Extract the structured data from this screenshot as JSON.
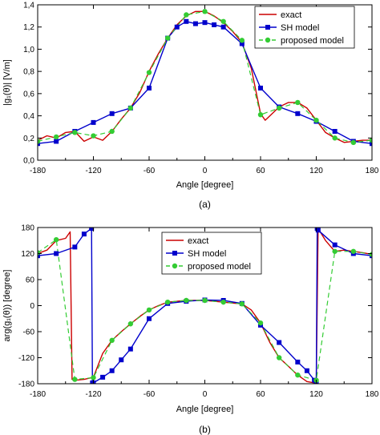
{
  "chart_data": [
    {
      "type": "line",
      "caption": "(a)",
      "xlabel": "Angle [degree]",
      "ylabel": "|g₁(θ)| [V/m]",
      "xlim": [
        -180,
        180
      ],
      "ylim": [
        0,
        1.4
      ],
      "xticks": [
        -180,
        -120,
        -60,
        0,
        60,
        120,
        180
      ],
      "xtick_labels": [
        "-180",
        "-120",
        "-60",
        "0",
        "60",
        "120",
        "180"
      ],
      "yticks": [
        0,
        0.2,
        0.4,
        0.6,
        0.8,
        1.0,
        1.2,
        1.4
      ],
      "ytick_labels": [
        "0,0",
        "0,2",
        "0,4",
        "0,6",
        "0,8",
        "1,0",
        "1,2",
        "1,4"
      ],
      "grid": false,
      "legend_position": "top-right",
      "series": [
        {
          "name": "exact",
          "style": "line",
          "color": "#cc0000",
          "x": [
            -180,
            -170,
            -160,
            -150,
            -140,
            -130,
            -120,
            -110,
            -100,
            -90,
            -80,
            -70,
            -60,
            -50,
            -40,
            -30,
            -20,
            -10,
            0,
            10,
            20,
            30,
            40,
            50,
            60,
            65,
            70,
            80,
            90,
            100,
            110,
            120,
            130,
            140,
            150,
            160,
            170,
            180
          ],
          "y": [
            0.18,
            0.22,
            0.2,
            0.25,
            0.26,
            0.17,
            0.21,
            0.18,
            0.26,
            0.37,
            0.47,
            0.61,
            0.8,
            0.96,
            1.1,
            1.22,
            1.3,
            1.34,
            1.34,
            1.3,
            1.24,
            1.16,
            1.06,
            0.83,
            0.42,
            0.36,
            0.4,
            0.48,
            0.52,
            0.52,
            0.47,
            0.36,
            0.25,
            0.2,
            0.16,
            0.17,
            0.18,
            0.18
          ]
        },
        {
          "name": "SH model",
          "style": "line-square",
          "color": "#0000cc",
          "x": [
            -180,
            -160,
            -140,
            -120,
            -100,
            -80,
            -60,
            -40,
            -30,
            -20,
            -10,
            0,
            10,
            20,
            40,
            60,
            80,
            100,
            120,
            140,
            160,
            180
          ],
          "y": [
            0.15,
            0.17,
            0.26,
            0.34,
            0.42,
            0.47,
            0.65,
            1.1,
            1.2,
            1.25,
            1.23,
            1.24,
            1.22,
            1.2,
            1.05,
            0.65,
            0.48,
            0.42,
            0.35,
            0.26,
            0.17,
            0.15
          ]
        },
        {
          "name": "proposed model",
          "style": "dashed-circle",
          "color": "#33cc33",
          "x": [
            -180,
            -160,
            -140,
            -120,
            -100,
            -80,
            -60,
            -40,
            -20,
            0,
            20,
            40,
            60,
            80,
            100,
            120,
            140,
            160,
            180
          ],
          "y": [
            0.17,
            0.21,
            0.25,
            0.22,
            0.26,
            0.47,
            0.79,
            1.1,
            1.31,
            1.34,
            1.25,
            1.08,
            0.41,
            0.47,
            0.52,
            0.36,
            0.2,
            0.16,
            0.18
          ]
        }
      ]
    },
    {
      "type": "line",
      "caption": "(b)",
      "xlabel": "Angle [degree]",
      "ylabel": "arg(g₁(θ)) [degree]",
      "xlim": [
        -180,
        180
      ],
      "ylim": [
        -180,
        180
      ],
      "xticks": [
        -180,
        -120,
        -60,
        0,
        60,
        120,
        180
      ],
      "xtick_labels": [
        "-180",
        "-120",
        "-60",
        "0",
        "60",
        "120",
        "180"
      ],
      "yticks": [
        -180,
        -120,
        -60,
        0,
        60,
        120,
        180
      ],
      "ytick_labels": [
        "-180",
        "-120",
        "-60",
        "0",
        "60",
        "120",
        "180"
      ],
      "grid": false,
      "legend_position": "top-center",
      "series": [
        {
          "name": "exact",
          "style": "line",
          "color": "#cc0000",
          "x": [
            -180,
            -170,
            -160,
            -150,
            -145,
            -143,
            -140,
            -130,
            -120,
            -110,
            -100,
            -90,
            -80,
            -70,
            -60,
            -50,
            -40,
            -30,
            -20,
            -10,
            0,
            10,
            20,
            30,
            40,
            50,
            60,
            70,
            80,
            90,
            100,
            110,
            118,
            120,
            122,
            130,
            140,
            150,
            160,
            170,
            180
          ],
          "y": [
            120,
            128,
            150,
            155,
            170,
            -170,
            -172,
            -170,
            -165,
            -110,
            -80,
            -60,
            -42,
            -25,
            -10,
            0,
            8,
            10,
            12,
            12,
            12,
            10,
            8,
            6,
            4,
            -10,
            -40,
            -85,
            -120,
            -140,
            -160,
            -175,
            -178,
            -178,
            178,
            150,
            125,
            128,
            125,
            122,
            118
          ]
        },
        {
          "name": "SH model",
          "style": "line-square",
          "color": "#0000cc",
          "x": [
            -180,
            -160,
            -140,
            -130,
            -122,
            -121,
            -120,
            -110,
            -100,
            -90,
            -80,
            -60,
            -40,
            -20,
            0,
            20,
            40,
            60,
            80,
            100,
            110,
            118,
            120,
            121,
            122,
            140,
            160,
            180
          ],
          "y": [
            115,
            120,
            135,
            165,
            178,
            -178,
            -178,
            -165,
            -150,
            -125,
            -100,
            -30,
            5,
            10,
            13,
            12,
            5,
            -45,
            -85,
            -130,
            -150,
            -172,
            -178,
            178,
            174,
            140,
            120,
            115
          ]
        },
        {
          "name": "proposed model",
          "style": "dashed-circle",
          "color": "#33cc33",
          "x": [
            -180,
            -160,
            -140,
            -120,
            -100,
            -80,
            -60,
            -40,
            -20,
            0,
            20,
            40,
            60,
            80,
            100,
            120,
            140,
            160,
            180
          ],
          "y": [
            122,
            152,
            -170,
            -166,
            -80,
            -42,
            -10,
            8,
            12,
            12,
            8,
            4,
            -40,
            -120,
            -160,
            -172,
            125,
            125,
            118
          ]
        }
      ]
    }
  ]
}
